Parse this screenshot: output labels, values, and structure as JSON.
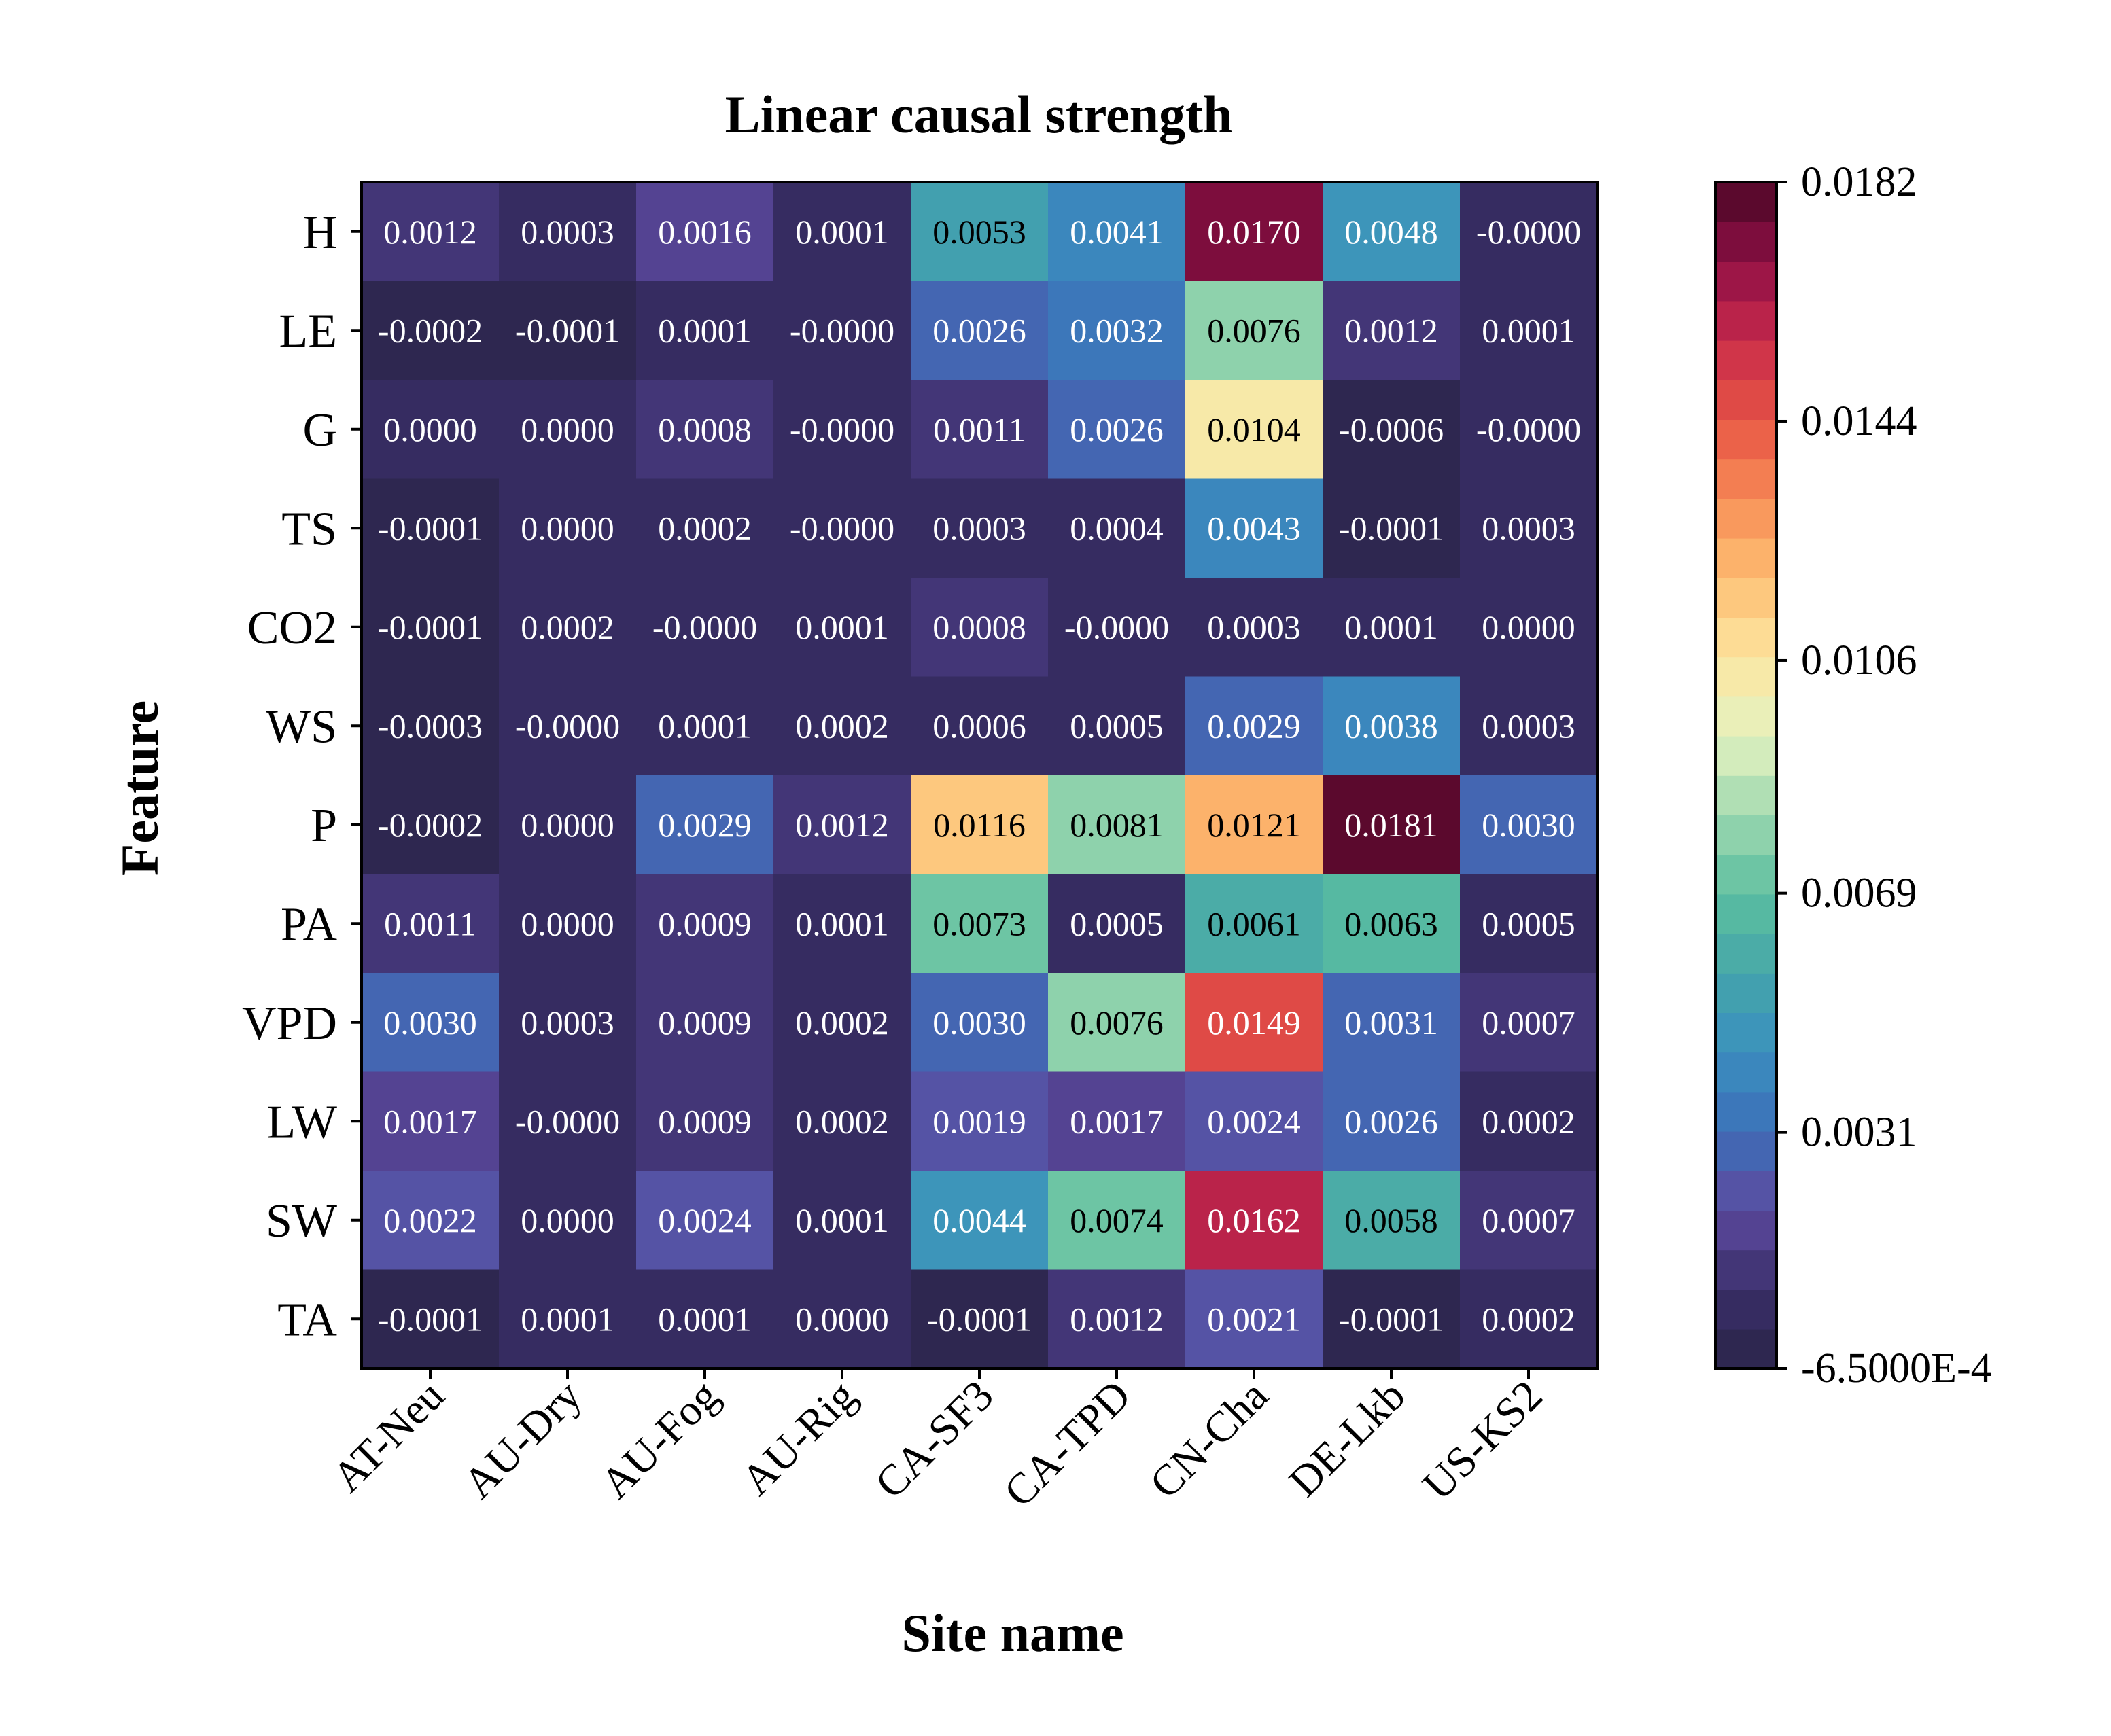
{
  "chart_data": {
    "type": "heatmap",
    "title": "Linear causal strength",
    "xlabel": "Site name",
    "ylabel": "Feature",
    "x_categories": [
      "AT-Neu",
      "AU-Dry",
      "AU-Fog",
      "AU-Rig",
      "CA-SF3",
      "CA-TPD",
      "CN-Cha",
      "DE-Lkb",
      "US-KS2"
    ],
    "y_categories": [
      "H",
      "LE",
      "G",
      "TS",
      "CO2",
      "WS",
      "P",
      "PA",
      "VPD",
      "LW",
      "SW",
      "TA"
    ],
    "cell_labels": [
      [
        "0.0012",
        "0.0003",
        "0.0016",
        "0.0001",
        "0.0053",
        "0.0041",
        "0.0170",
        "0.0048",
        "-0.0000"
      ],
      [
        "-0.0002",
        "-0.0001",
        "0.0001",
        "-0.0000",
        "0.0026",
        "0.0032",
        "0.0076",
        "0.0012",
        "0.0001"
      ],
      [
        "0.0000",
        "0.0000",
        "0.0008",
        "-0.0000",
        "0.0011",
        "0.0026",
        "0.0104",
        "-0.0006",
        "-0.0000"
      ],
      [
        "-0.0001",
        "0.0000",
        "0.0002",
        "-0.0000",
        "0.0003",
        "0.0004",
        "0.0043",
        "-0.0001",
        "0.0003"
      ],
      [
        "-0.0001",
        "0.0002",
        "-0.0000",
        "0.0001",
        "0.0008",
        "-0.0000",
        "0.0003",
        "0.0001",
        "0.0000"
      ],
      [
        "-0.0003",
        "-0.0000",
        "0.0001",
        "0.0002",
        "0.0006",
        "0.0005",
        "0.0029",
        "0.0038",
        "0.0003"
      ],
      [
        "-0.0002",
        "0.0000",
        "0.0029",
        "0.0012",
        "0.0116",
        "0.0081",
        "0.0121",
        "0.0181",
        "0.0030"
      ],
      [
        "0.0011",
        "0.0000",
        "0.0009",
        "0.0001",
        "0.0073",
        "0.0005",
        "0.0061",
        "0.0063",
        "0.0005"
      ],
      [
        "0.0030",
        "0.0003",
        "0.0009",
        "0.0002",
        "0.0030",
        "0.0076",
        "0.0149",
        "0.0031",
        "0.0007"
      ],
      [
        "0.0017",
        "-0.0000",
        "0.0009",
        "0.0002",
        "0.0019",
        "0.0017",
        "0.0024",
        "0.0026",
        "0.0002"
      ],
      [
        "0.0022",
        "0.0000",
        "0.0024",
        "0.0001",
        "0.0044",
        "0.0074",
        "0.0162",
        "0.0058",
        "0.0007"
      ],
      [
        "-0.0001",
        "0.0001",
        "0.0001",
        "0.0000",
        "-0.0001",
        "0.0012",
        "0.0021",
        "-0.0001",
        "0.0002"
      ]
    ],
    "colorbar": {
      "min": -0.00065,
      "max": 0.0182,
      "ticks": [
        {
          "value": 0.0182,
          "label": "0.0182"
        },
        {
          "value": 0.0144,
          "label": "0.0144"
        },
        {
          "value": 0.0106,
          "label": "0.0106"
        },
        {
          "value": 0.0069,
          "label": "0.0069"
        },
        {
          "value": 0.0031,
          "label": "0.0031"
        },
        {
          "value": -0.00065,
          "label": "-6.5000E-4"
        }
      ],
      "levels": 30
    },
    "colormap": [
      "#2a2447",
      "#3a2f6a",
      "#5d4a9f",
      "#3c6fb8",
      "#3a8fbf",
      "#45a6a9",
      "#5cbfa0",
      "#9fd8b0",
      "#e4f2c0",
      "#fde6a0",
      "#fdbe72",
      "#f78c56",
      "#e75444",
      "#c82a4b",
      "#8e0f45",
      "#4a0725"
    ],
    "grid": false,
    "legend": "none"
  }
}
